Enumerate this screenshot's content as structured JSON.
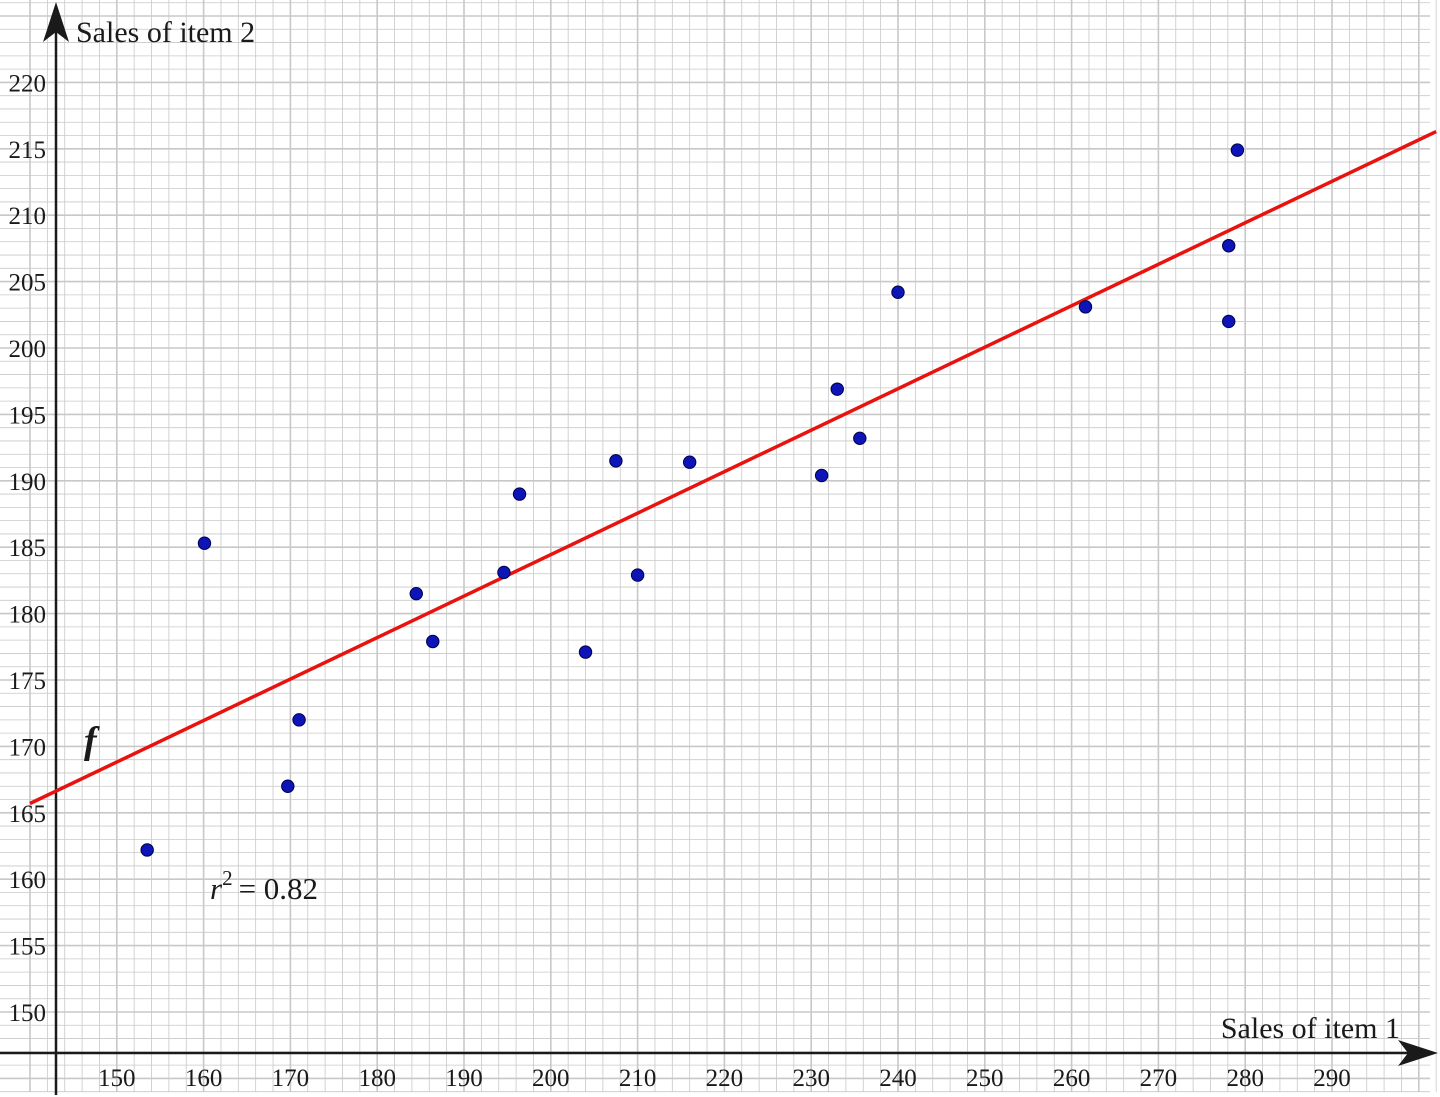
{
  "chart_data": {
    "type": "scatter",
    "xlabel": "Sales of item 1",
    "ylabel": "Sales of item 2",
    "xlim": [
      140,
      302
    ],
    "ylim": [
      147,
      225
    ],
    "x_ticks": [
      "150",
      "160",
      "170",
      "180",
      "190",
      "200",
      "210",
      "220",
      "230",
      "240",
      "250",
      "260",
      "270",
      "280",
      "290"
    ],
    "y_ticks": [
      "150",
      "155",
      "160",
      "165",
      "170",
      "175",
      "180",
      "185",
      "190",
      "195",
      "200",
      "205",
      "210",
      "215",
      "220"
    ],
    "grid": true,
    "points": [
      {
        "x": 153.5,
        "y": 162.2
      },
      {
        "x": 160.1,
        "y": 185.3
      },
      {
        "x": 169.7,
        "y": 167.0
      },
      {
        "x": 171.0,
        "y": 172.0
      },
      {
        "x": 184.5,
        "y": 181.5
      },
      {
        "x": 186.4,
        "y": 177.9
      },
      {
        "x": 194.6,
        "y": 183.1
      },
      {
        "x": 196.4,
        "y": 189.0
      },
      {
        "x": 204.0,
        "y": 177.1
      },
      {
        "x": 207.5,
        "y": 191.5
      },
      {
        "x": 210.0,
        "y": 182.9
      },
      {
        "x": 216.0,
        "y": 191.4
      },
      {
        "x": 231.2,
        "y": 190.4
      },
      {
        "x": 233.0,
        "y": 196.9
      },
      {
        "x": 235.6,
        "y": 193.2
      },
      {
        "x": 240.0,
        "y": 204.2
      },
      {
        "x": 261.6,
        "y": 203.1
      },
      {
        "x": 278.1,
        "y": 207.7
      },
      {
        "x": 278.1,
        "y": 202.0
      },
      {
        "x": 279.1,
        "y": 214.9
      }
    ],
    "trendline": {
      "label": "f",
      "x": [
        140,
        302
      ],
      "y": [
        165.7,
        216.3
      ],
      "color": "#e8130f"
    },
    "annotation": {
      "r_symbol": "r",
      "r_exponent": "2",
      "r_value": "= 0.82"
    },
    "point_color": "#0d14b8",
    "grid_color": "#c8c8c8"
  }
}
